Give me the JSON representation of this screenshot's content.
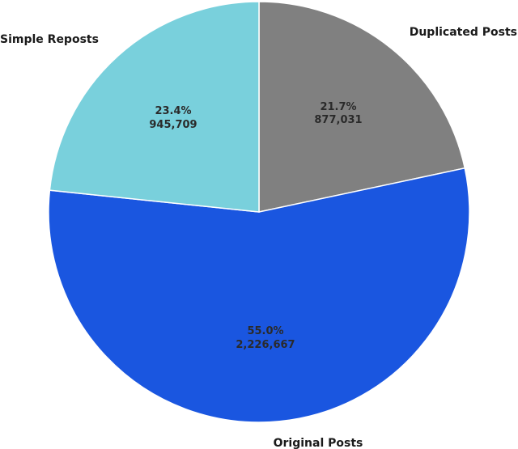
{
  "chart_data": {
    "type": "pie",
    "title": "",
    "slices": [
      {
        "label": "Duplicated Posts",
        "value": 877031,
        "percent_label": "21.7%",
        "value_label": "877,031",
        "color": "#808080"
      },
      {
        "label": "Original Posts",
        "value": 2226667,
        "percent_label": "55.0%",
        "value_label": "2,226,667",
        "color": "#1a56e0"
      },
      {
        "label": "Simple Reposts",
        "value": 945709,
        "percent_label": "23.4%",
        "value_label": "945,709",
        "color": "#79d0dc"
      }
    ],
    "start": "top",
    "direction": "clockwise",
    "legend": "none"
  }
}
